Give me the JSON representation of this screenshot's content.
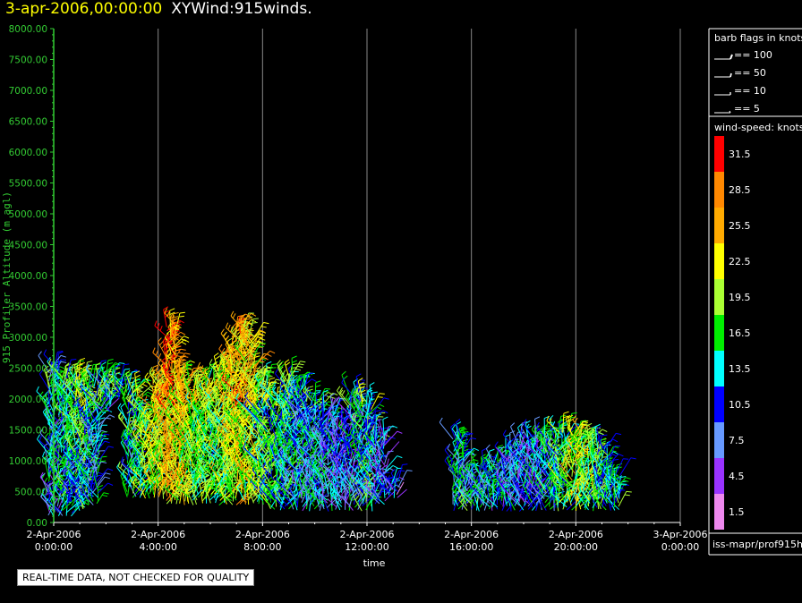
{
  "header": {
    "timestamp": "3-apr-2006,00:00:00",
    "product": "XYWind:915winds."
  },
  "colors": {
    "background": "#000000",
    "axis": "#33cc33",
    "text": "#ffffff",
    "grid": "#888888",
    "title_timestamp": "#ffff00"
  },
  "chart_data": {
    "type": "scatter",
    "subtype": "wind-barbs",
    "ylabel": "915 Profiler Altitude (m agl)",
    "xlabel": "time",
    "ylim": [
      0,
      8000
    ],
    "y_ticks": [
      "0.00",
      "500.00",
      "1000.00",
      "1500.00",
      "2000.00",
      "2500.00",
      "3000.00",
      "3500.00",
      "4000.00",
      "4500.00",
      "5000.00",
      "5500.00",
      "6000.00",
      "6500.00",
      "7000.00",
      "7500.00",
      "8000.00"
    ],
    "x_ticks": [
      {
        "date": "2-Apr-2006",
        "time": "0:00:00"
      },
      {
        "date": "2-Apr-2006",
        "time": "4:00:00"
      },
      {
        "date": "2-Apr-2006",
        "time": "8:00:00"
      },
      {
        "date": "2-Apr-2006",
        "time": "12:00:00"
      },
      {
        "date": "2-Apr-2006",
        "time": "16:00:00"
      },
      {
        "date": "2-Apr-2006",
        "time": "20:00:00"
      },
      {
        "date": "3-Apr-2006",
        "time": "0:00:00"
      }
    ],
    "grid": "vertical",
    "profiles": [
      {
        "hour": 0.0,
        "lo": 100,
        "hi": 2500,
        "spd": 11
      },
      {
        "hour": 0.5,
        "lo": 100,
        "hi": 2400,
        "spd": 13
      },
      {
        "hour": 1.0,
        "lo": 200,
        "hi": 2300,
        "spd": 15
      },
      {
        "hour": 1.5,
        "lo": 300,
        "hi": 2300,
        "spd": 12
      },
      {
        "hour": 2.0,
        "lo": 1800,
        "hi": 2400,
        "spd": 10
      },
      {
        "hour": 2.5,
        "lo": 2000,
        "hi": 2300,
        "spd": 12
      },
      {
        "hour": 3.0,
        "lo": 400,
        "hi": 2200,
        "spd": 14
      },
      {
        "hour": 3.5,
        "lo": 400,
        "hi": 1800,
        "spd": 18
      },
      {
        "hour": 4.0,
        "lo": 400,
        "hi": 2300,
        "spd": 21
      },
      {
        "hour": 4.5,
        "lo": 300,
        "hi": 3200,
        "spd": 24
      },
      {
        "hour": 5.0,
        "lo": 300,
        "hi": 2400,
        "spd": 20
      },
      {
        "hour": 5.5,
        "lo": 300,
        "hi": 2200,
        "spd": 18
      },
      {
        "hour": 6.0,
        "lo": 300,
        "hi": 2300,
        "spd": 17
      },
      {
        "hour": 6.5,
        "lo": 300,
        "hi": 2600,
        "spd": 19
      },
      {
        "hour": 7.0,
        "lo": 300,
        "hi": 3200,
        "spd": 22
      },
      {
        "hour": 7.5,
        "lo": 300,
        "hi": 3000,
        "spd": 20
      },
      {
        "hour": 8.0,
        "lo": 300,
        "hi": 2300,
        "spd": 16
      },
      {
        "hour": 8.5,
        "lo": 200,
        "hi": 2000,
        "spd": 15
      },
      {
        "hour": 9.0,
        "lo": 200,
        "hi": 2400,
        "spd": 13
      },
      {
        "hour": 9.5,
        "lo": 200,
        "hi": 2200,
        "spd": 11
      },
      {
        "hour": 10.0,
        "lo": 200,
        "hi": 2000,
        "spd": 12
      },
      {
        "hour": 10.5,
        "lo": 200,
        "hi": 1800,
        "spd": 10
      },
      {
        "hour": 11.0,
        "lo": 200,
        "hi": 1600,
        "spd": 9
      },
      {
        "hour": 11.5,
        "lo": 200,
        "hi": 2100,
        "spd": 11
      },
      {
        "hour": 12.0,
        "lo": 200,
        "hi": 2000,
        "spd": 14
      },
      {
        "hour": 12.5,
        "lo": 300,
        "hi": 1400,
        "spd": 9
      },
      {
        "hour": 13.0,
        "lo": 400,
        "hi": 700,
        "spd": 8
      },
      {
        "hour": 15.5,
        "lo": 200,
        "hi": 1400,
        "spd": 12
      },
      {
        "hour": 16.0,
        "lo": 200,
        "hi": 800,
        "spd": 13
      },
      {
        "hour": 16.5,
        "lo": 200,
        "hi": 900,
        "spd": 12
      },
      {
        "hour": 17.0,
        "lo": 200,
        "hi": 1000,
        "spd": 11
      },
      {
        "hour": 17.5,
        "lo": 200,
        "hi": 1200,
        "spd": 10
      },
      {
        "hour": 18.0,
        "lo": 200,
        "hi": 1300,
        "spd": 9
      },
      {
        "hour": 18.5,
        "lo": 200,
        "hi": 1400,
        "spd": 11
      },
      {
        "hour": 19.0,
        "lo": 200,
        "hi": 1400,
        "spd": 13
      },
      {
        "hour": 19.5,
        "lo": 200,
        "hi": 1500,
        "spd": 16
      },
      {
        "hour": 20.0,
        "lo": 200,
        "hi": 1500,
        "spd": 20
      },
      {
        "hour": 20.5,
        "lo": 200,
        "hi": 1300,
        "spd": 18
      },
      {
        "hour": 21.0,
        "lo": 200,
        "hi": 1200,
        "spd": 15
      },
      {
        "hour": 21.5,
        "lo": 200,
        "hi": 800,
        "spd": 13
      }
    ]
  },
  "legend": {
    "barb_title": "barb flags in knots",
    "barb_items": [
      "== 100",
      "== 50",
      "== 10",
      "== 5"
    ],
    "speed_title": "wind-speed: knots",
    "speed_bins": [
      {
        "label": "31.5",
        "color": "#ff0000"
      },
      {
        "label": "28.5",
        "color": "#ff8800"
      },
      {
        "label": "25.5",
        "color": "#ffaa00"
      },
      {
        "label": "22.5",
        "color": "#ffff00"
      },
      {
        "label": "19.5",
        "color": "#aaff33"
      },
      {
        "label": "16.5",
        "color": "#00ee00"
      },
      {
        "label": "13.5",
        "color": "#00ffff"
      },
      {
        "label": "10.5",
        "color": "#0000ff"
      },
      {
        "label": "7.5",
        "color": "#6699ff"
      },
      {
        "label": "4.5",
        "color": "#9933ff"
      },
      {
        "label": "1.5",
        "color": "#ee88ee"
      }
    ],
    "source": "iss-mapr/prof915h"
  },
  "footer": {
    "quality_note": "REAL-TIME DATA, NOT CHECKED FOR QUALITY"
  }
}
